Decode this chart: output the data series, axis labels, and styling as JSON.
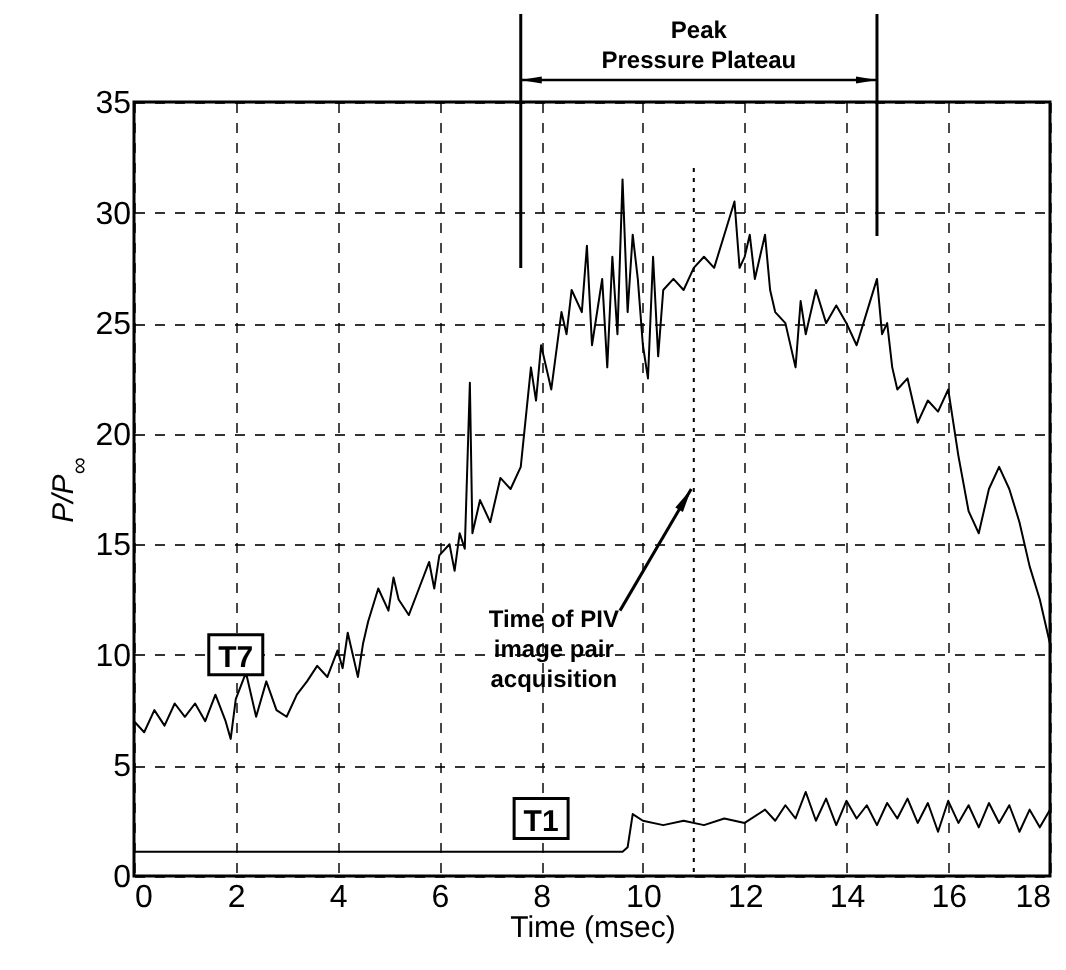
{
  "chart_data": {
    "type": "line",
    "xlabel": "Time (msec)",
    "ylabel": "P/P$_{∞}$",
    "xlim": [
      0,
      18
    ],
    "xticks": [
      0,
      2,
      4,
      6,
      8,
      10,
      12,
      14,
      16,
      18
    ],
    "ylim": [
      0,
      35
    ],
    "yticks": [
      0,
      5,
      10,
      15,
      20,
      25,
      30,
      35
    ],
    "grid": true,
    "legend": false,
    "series": [
      {
        "name": "T7",
        "color": "#000000",
        "x": [
          0,
          0.2,
          0.4,
          0.6,
          0.8,
          1,
          1.2,
          1.4,
          1.6,
          1.8,
          1.9,
          2,
          2.2,
          2.4,
          2.6,
          2.8,
          3,
          3.2,
          3.4,
          3.6,
          3.8,
          4,
          4.1,
          4.2,
          4.4,
          4.5,
          4.6,
          4.8,
          5,
          5.1,
          5.2,
          5.4,
          5.6,
          5.8,
          5.9,
          6,
          6.2,
          6.3,
          6.4,
          6.5,
          6.6,
          6.65,
          6.8,
          7,
          7.2,
          7.4,
          7.6,
          7.8,
          7.9,
          8,
          8.2,
          8.4,
          8.5,
          8.6,
          8.8,
          8.9,
          9,
          9.2,
          9.3,
          9.4,
          9.5,
          9.6,
          9.7,
          9.8,
          9.9,
          10,
          10.1,
          10.2,
          10.3,
          10.4,
          10.6,
          10.8,
          11,
          11.2,
          11.4,
          11.6,
          11.8,
          11.9,
          12,
          12.1,
          12.2,
          12.4,
          12.5,
          12.6,
          12.8,
          13,
          13.1,
          13.2,
          13.4,
          13.6,
          13.8,
          14,
          14.2,
          14.4,
          14.6,
          14.7,
          14.8,
          14.9,
          15,
          15.2,
          15.4,
          15.6,
          15.8,
          16,
          16.1,
          16.2,
          16.4,
          16.6,
          16.8,
          17,
          17.2,
          17.4,
          17.6,
          17.8,
          18
        ],
        "values": [
          7,
          6.5,
          7.5,
          6.8,
          7.8,
          7.2,
          7.8,
          7,
          8.2,
          7,
          6.2,
          8,
          9.2,
          7.2,
          8.8,
          7.5,
          7.2,
          8.2,
          8.8,
          9.5,
          9,
          10.2,
          9.4,
          11,
          9,
          10.5,
          11.5,
          13,
          12,
          13.5,
          12.5,
          11.8,
          13,
          14.2,
          13,
          14.5,
          15,
          13.8,
          15.5,
          14.8,
          22.3,
          15.5,
          17,
          16,
          18,
          17.5,
          18.5,
          23,
          21.5,
          24,
          22,
          25.5,
          24.5,
          26.5,
          25.5,
          28.5,
          24,
          27,
          23,
          28,
          24.5,
          31.5,
          25.5,
          29,
          27,
          24,
          22.5,
          28,
          23.5,
          26.5,
          27,
          26.5,
          27.5,
          28,
          27.5,
          29,
          30.5,
          27.5,
          28,
          29,
          27,
          29,
          26.5,
          25.5,
          25,
          23,
          26,
          24.5,
          26.5,
          25,
          25.8,
          25,
          24,
          25.5,
          27,
          24.5,
          25,
          23,
          22,
          22.5,
          20.5,
          21.5,
          21,
          22,
          20.5,
          19,
          16.5,
          15.5,
          17.5,
          18.5,
          17.5,
          16,
          14,
          12.5,
          10.5
        ]
      },
      {
        "name": "T1",
        "color": "#000000",
        "x": [
          0,
          9.6,
          9.7,
          9.8,
          10,
          10.4,
          10.8,
          11.2,
          11.6,
          12,
          12.4,
          12.6,
          12.8,
          13,
          13.2,
          13.4,
          13.6,
          13.8,
          14,
          14.2,
          14.4,
          14.6,
          14.8,
          15,
          15.2,
          15.4,
          15.6,
          15.8,
          16,
          16.2,
          16.4,
          16.6,
          16.8,
          17,
          17.2,
          17.4,
          17.6,
          17.8,
          18
        ],
        "values": [
          1.1,
          1.1,
          1.3,
          2.8,
          2.5,
          2.3,
          2.5,
          2.3,
          2.6,
          2.4,
          3,
          2.5,
          3.2,
          2.6,
          3.8,
          2.5,
          3.5,
          2.3,
          3.4,
          2.6,
          3.2,
          2.3,
          3.3,
          2.6,
          3.5,
          2.4,
          3.3,
          2,
          3.4,
          2.4,
          3.2,
          2.2,
          3.3,
          2.4,
          3.2,
          2,
          3,
          2.2,
          3
        ]
      }
    ],
    "ref_lines": [
      {
        "axis": "x",
        "value": 11,
        "label": "Time of PIV image pair acquisition",
        "line_style": "dotted"
      }
    ],
    "annotations": [
      "Peak Pressure Plateau"
    ]
  }
}
